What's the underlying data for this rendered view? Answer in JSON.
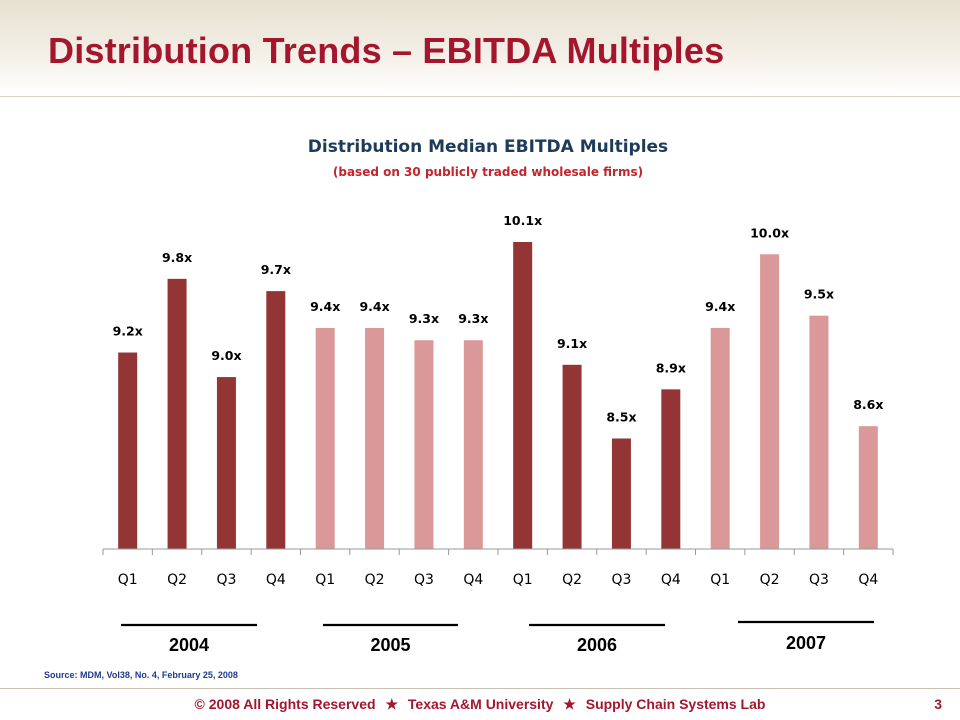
{
  "slide": {
    "title": "Distribution Trends – EBITDA Multiples",
    "source": "Source: MDM, Vol38, No. 4, February 25, 2008",
    "footer": {
      "copyright_symbol": "©",
      "copyright_text": "2008 All Rights Reserved",
      "org": "Texas A&M University",
      "lab": "Supply Chain Systems Lab",
      "star_glyph": "★"
    },
    "page_number": "3"
  },
  "chart_data": {
    "type": "bar",
    "title": "Distribution Median EBITDA Multiples",
    "subtitle": "(based on 30 publicly traded wholesale firms)",
    "categories": [
      "Q1",
      "Q2",
      "Q3",
      "Q4",
      "Q1",
      "Q2",
      "Q3",
      "Q4",
      "Q1",
      "Q2",
      "Q3",
      "Q4",
      "Q1",
      "Q2",
      "Q3",
      "Q4"
    ],
    "values": [
      9.2,
      9.8,
      9.0,
      9.7,
      9.4,
      9.4,
      9.3,
      9.3,
      10.1,
      9.1,
      8.5,
      8.9,
      9.4,
      10.0,
      9.5,
      8.6
    ],
    "data_labels": [
      "9.2x",
      "9.8x",
      "9.0x",
      "9.7x",
      "9.4x",
      "9.4x",
      "9.3x",
      "9.3x",
      "10.1x",
      "9.1x",
      "8.5x",
      "8.9x",
      "9.4x",
      "10.0x",
      "9.5x",
      "8.6x"
    ],
    "groups": [
      "2004",
      "2005",
      "2006",
      "2007"
    ],
    "bar_colors": [
      "#933535",
      "#933535",
      "#933535",
      "#933535",
      "#da9898",
      "#da9898",
      "#da9898",
      "#da9898",
      "#933535",
      "#933535",
      "#933535",
      "#933535",
      "#da9898",
      "#da9898",
      "#da9898",
      "#da9898"
    ],
    "grid": false,
    "legend": "none"
  }
}
